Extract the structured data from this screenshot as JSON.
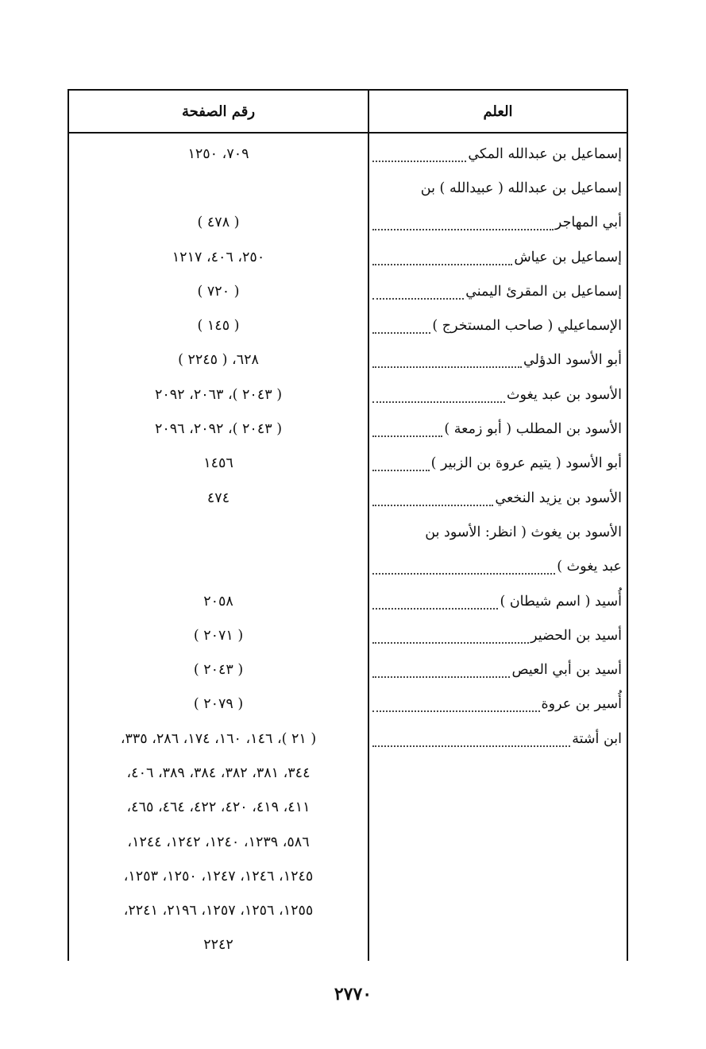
{
  "header": {
    "name_col": "العلم",
    "pages_col": "رقم الصفحة"
  },
  "entries": [
    {
      "name_lines": [
        "إسماعيل بن عبدالله المكي"
      ],
      "pages_lines": [
        "٧٠٩، ١٢٥٠"
      ]
    },
    {
      "name_lines": [
        "إسماعيل بن عبدالله ( عبيدالله ) بن",
        "أبي المهاجر"
      ],
      "pages_lines": [
        "",
        "( ٤٧٨ )"
      ]
    },
    {
      "name_lines": [
        "إسماعيل بن عياش"
      ],
      "pages_lines": [
        "٢٥٠، ٤٠٦، ١٢١٧"
      ]
    },
    {
      "name_lines": [
        "إسماعيل بن المقرئ اليمني"
      ],
      "pages_lines": [
        "( ٧٢٠ )"
      ]
    },
    {
      "name_lines": [
        "الإسماعيلي ( صاحب المستخرج )"
      ],
      "pages_lines": [
        "( ١٤٥ )"
      ]
    },
    {
      "name_lines": [
        "أبو الأسود الدؤلي"
      ],
      "pages_lines": [
        "٦٢٨، ( ٢٢٤٥ )"
      ]
    },
    {
      "name_lines": [
        "الأسود بن عبد يغوث"
      ],
      "pages_lines": [
        "( ٢٠٤٣ )، ٢٠٦٣، ٢٠٩٢"
      ]
    },
    {
      "name_lines": [
        "الأسود بن المطلب ( أبو زمعة )"
      ],
      "pages_lines": [
        "( ٢٠٤٣ )، ٢٠٩٢، ٢٠٩٦"
      ]
    },
    {
      "name_lines": [
        "أبو الأسود ( يتيم عروة بن الزبير )"
      ],
      "pages_lines": [
        "١٤٥٦"
      ]
    },
    {
      "name_lines": [
        "الأسود بن يزيد النخعي"
      ],
      "pages_lines": [
        "٤٧٤"
      ]
    },
    {
      "name_lines": [
        "الأسود بن يغوث ( انظر: الأسود بن",
        "عبد يغوث )"
      ],
      "pages_lines": [
        "",
        ""
      ]
    },
    {
      "name_lines": [
        "أُسيد ( اسم شيطان )"
      ],
      "pages_lines": [
        "٢٠٥٨"
      ]
    },
    {
      "name_lines": [
        "أسيد بن الحضير"
      ],
      "pages_lines": [
        "( ٢٠٧١ )"
      ]
    },
    {
      "name_lines": [
        "أسيد بن أبي العيص"
      ],
      "pages_lines": [
        "( ٢٠٤٣ )"
      ]
    },
    {
      "name_lines": [
        "أُسير بن عروة"
      ],
      "pages_lines": [
        "( ٢٠٧٩ )"
      ]
    },
    {
      "name_lines": [
        "ابن أشتة"
      ],
      "pages_lines": [
        "( ٢١ )، ١٤٦، ١٦٠، ١٧٤، ٢٨٦، ٣٣٥،",
        "٣٤٤، ٣٨١، ٣٨٢، ٣٨٤، ٣٨٩، ٤٠٦،",
        "٤١١، ٤١٩، ٤٢٠، ٤٢٢، ٤٦٤، ٤٦٥،",
        "٥٨٦، ١٢٣٩، ١٢٤٠، ١٢٤٢، ١٢٤٤،",
        "١٢٤٥، ١٢٤٦، ١٢٤٧، ١٢٥٠، ١٢٥٣،",
        "١٢٥٥، ١٢٥٦، ١٢٥٧، ٢١٩٦، ٢٢٤١،",
        "٢٢٤٢"
      ]
    }
  ],
  "page_number": "٢٧٧٠"
}
